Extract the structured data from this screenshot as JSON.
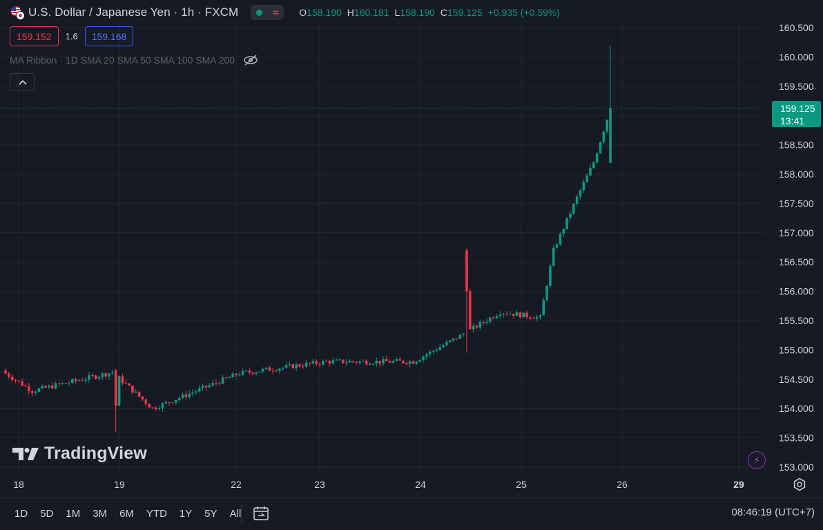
{
  "header": {
    "title": "U.S. Dollar / Japanese Yen · 1h · FXCM",
    "ohlc": [
      {
        "label": "O",
        "value": "158.190"
      },
      {
        "label": "H",
        "value": "160.181"
      },
      {
        "label": "L",
        "value": "158.190"
      },
      {
        "label": "C",
        "value": "159.125"
      }
    ],
    "change": "+0.935 (+0.59%)"
  },
  "trade": {
    "sell_price": "159.152",
    "spread": "1.6",
    "buy_price": "159.168"
  },
  "indicator": {
    "label": "MA Ribbon · 1D SMA 20 SMA 50 SMA 100 SMA 200",
    "icon": "eye-crossed-icon"
  },
  "watermark": "TradingView",
  "last_price": {
    "price": "159.125",
    "countdown": "13:41"
  },
  "timeframes": [
    "1D",
    "5D",
    "1M",
    "3M",
    "6M",
    "YTD",
    "1Y",
    "5Y",
    "All"
  ],
  "clock": "08:46:19 (UTC+7)",
  "colors": {
    "up": "#089981",
    "down": "#f23645",
    "background": "#161a25",
    "grid": "#232632"
  },
  "chart_data": {
    "type": "candlestick",
    "symbol": "USDJPY",
    "interval": "1h",
    "ylim": [
      153.0,
      160.5
    ],
    "y_ticks": [
      "153.000",
      "153.500",
      "154.000",
      "154.500",
      "155.000",
      "155.500",
      "156.000",
      "156.500",
      "157.000",
      "157.500",
      "158.000",
      "158.500",
      "159.000",
      "159.500",
      "160.000",
      "160.500"
    ],
    "x_ticks": [
      "18",
      "19",
      "22",
      "23",
      "24",
      "25",
      "26",
      "29"
    ],
    "last_close": 159.125,
    "key_points": [
      {
        "x": "18",
        "close": 154.6
      },
      {
        "x": "18",
        "close": 154.3
      },
      {
        "x": "19",
        "close": 154.62
      },
      {
        "x": "19",
        "close": 154.0,
        "low": 153.6
      },
      {
        "x": "22",
        "close": 154.6
      },
      {
        "x": "23",
        "close": 154.8
      },
      {
        "x": "24",
        "close": 154.8
      },
      {
        "x": "25",
        "close": 155.3
      },
      {
        "x": "25",
        "close": 155.65
      },
      {
        "x": "26",
        "close": 155.55,
        "low": 154.95
      },
      {
        "x": "26",
        "close": 156.7
      },
      {
        "x": "26",
        "close": 157.6
      },
      {
        "x": "29",
        "close": 158.2
      },
      {
        "x": "29",
        "close": 159.125,
        "high": 160.181
      }
    ]
  }
}
